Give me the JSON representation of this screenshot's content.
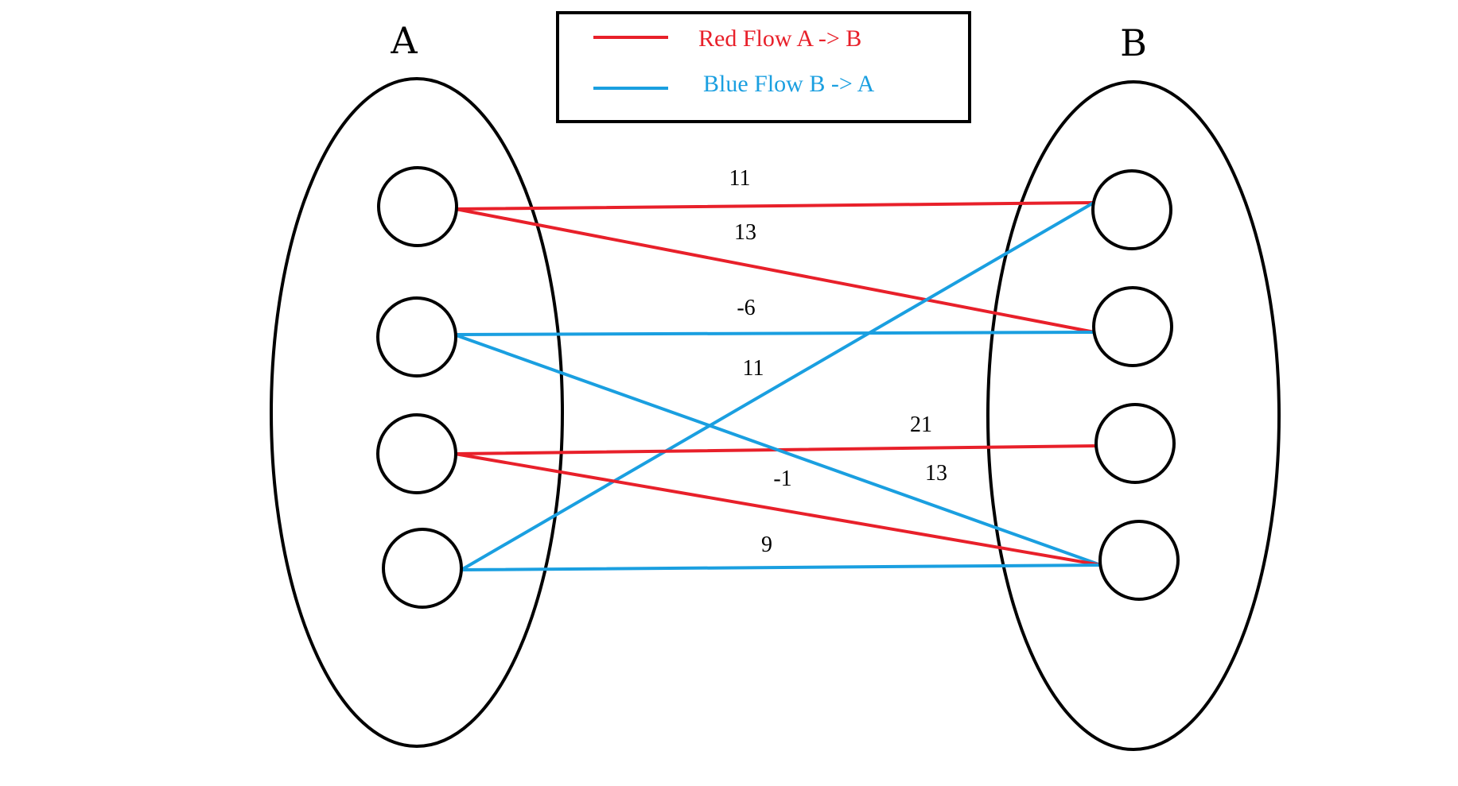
{
  "sets": {
    "a": {
      "label": "A"
    },
    "b": {
      "label": "B"
    }
  },
  "legend": {
    "red_label": "Red Flow A -> B",
    "blue_label": "Blue Flow B -> A"
  },
  "colors": {
    "red": "#e8202a",
    "blue": "#1a9fe0",
    "outline": "#000000"
  },
  "edges": [
    {
      "flow": "red",
      "from": "A1",
      "to": "B1",
      "weight": "11"
    },
    {
      "flow": "red",
      "from": "A1",
      "to": "B2",
      "weight": "13"
    },
    {
      "flow": "blue",
      "from": "B2",
      "to": "A2",
      "weight": "-6"
    },
    {
      "flow": "blue",
      "from": "B1",
      "to": "A4",
      "weight": "11"
    },
    {
      "flow": "red",
      "from": "A3",
      "to": "B3",
      "weight": "21"
    },
    {
      "flow": "blue",
      "from": "B4",
      "to": "A2",
      "weight": "13"
    },
    {
      "flow": "red",
      "from": "A3",
      "to": "B4",
      "weight": "-1"
    },
    {
      "flow": "blue",
      "from": "B4",
      "to": "A4",
      "weight": "9"
    }
  ]
}
